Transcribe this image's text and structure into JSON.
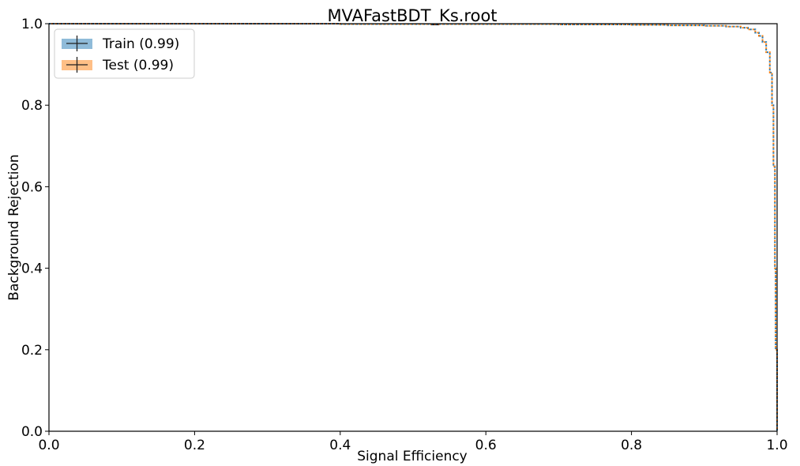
{
  "chart_data": {
    "type": "line",
    "title": "MVAFastBDT_Ks.root",
    "xlabel": "Signal Efficiency",
    "ylabel": "Background Rejection",
    "xlim": [
      0.0,
      1.0
    ],
    "ylim": [
      0.0,
      1.0
    ],
    "xticks": [
      "0.0",
      "0.2",
      "0.4",
      "0.6",
      "0.8",
      "1.0"
    ],
    "yticks": [
      "0.0",
      "0.2",
      "0.4",
      "0.6",
      "0.8",
      "1.0"
    ],
    "grid": false,
    "legend_position": "top-left",
    "series": [
      {
        "name": "Train (0.99)",
        "color": "#1f77b4",
        "x": [
          0.0,
          0.2,
          0.4,
          0.6,
          0.7,
          0.8,
          0.85,
          0.9,
          0.93,
          0.95,
          0.96,
          0.97,
          0.975,
          0.98,
          0.985,
          0.99,
          0.993,
          0.995,
          0.997,
          0.998,
          1.0
        ],
        "y": [
          1.0,
          1.0,
          0.999,
          0.999,
          0.998,
          0.997,
          0.996,
          0.995,
          0.993,
          0.99,
          0.986,
          0.978,
          0.97,
          0.955,
          0.93,
          0.88,
          0.8,
          0.65,
          0.4,
          0.2,
          0.0
        ]
      },
      {
        "name": "Test (0.99)",
        "color": "#ff7f0e",
        "x": [
          0.0,
          0.2,
          0.4,
          0.6,
          0.7,
          0.8,
          0.85,
          0.9,
          0.93,
          0.95,
          0.96,
          0.97,
          0.975,
          0.98,
          0.985,
          0.99,
          0.993,
          0.995,
          0.997,
          0.998,
          1.0
        ],
        "y": [
          1.0,
          1.0,
          0.999,
          0.999,
          0.998,
          0.997,
          0.996,
          0.995,
          0.993,
          0.99,
          0.986,
          0.978,
          0.97,
          0.955,
          0.93,
          0.88,
          0.8,
          0.65,
          0.4,
          0.2,
          0.0
        ]
      }
    ]
  }
}
